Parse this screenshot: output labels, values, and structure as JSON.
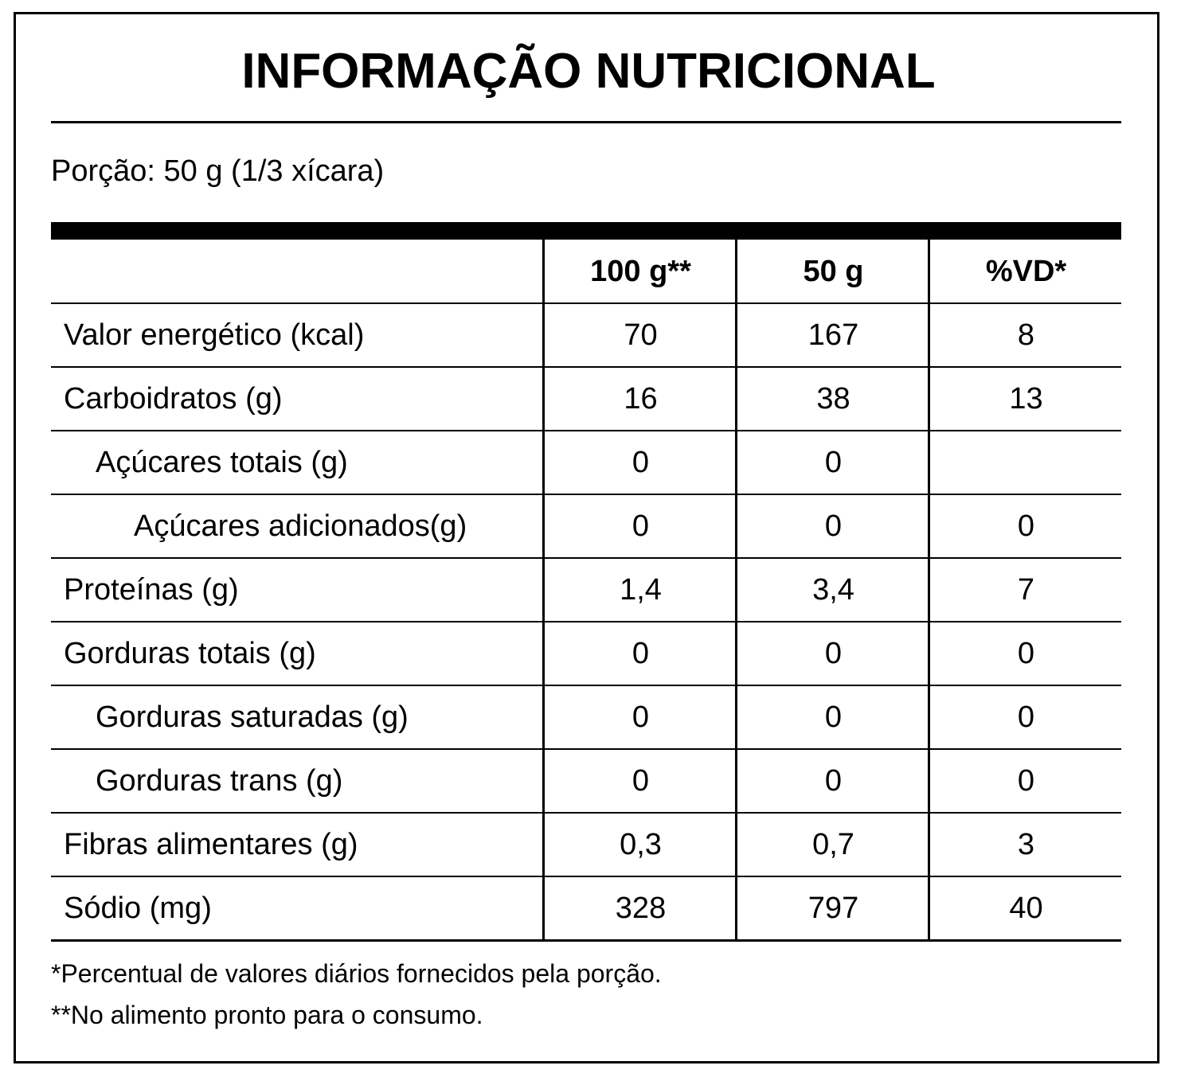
{
  "title": "INFORMAÇÃO NUTRICIONAL",
  "serving": "Porção: 50 g (1/3 xícara)",
  "table": {
    "header": [
      "100 g**",
      "50 g",
      "%VD*"
    ],
    "rows": [
      [
        "Valor energético (kcal)",
        "70",
        "167",
        "8"
      ],
      [
        "Carboidratos (g)",
        "16",
        "38",
        "13"
      ],
      [
        "Açúcares totais (g)",
        "0",
        "0",
        null
      ],
      [
        "Açúcares adicionados(g)",
        "0",
        "0",
        "0"
      ],
      [
        "Proteínas (g)",
        "1,4",
        "3,4",
        "7"
      ],
      [
        "Gorduras totais (g)",
        "0",
        "0",
        "0"
      ],
      [
        "Gorduras saturadas (g)",
        "0",
        "0",
        "0"
      ],
      [
        "Gorduras trans (g)",
        "0",
        "0",
        "0"
      ],
      [
        "Fibras alimentares (g)",
        "0,3",
        "0,7",
        "3"
      ],
      [
        "Sódio (mg)",
        "328",
        "797",
        "40"
      ]
    ]
  },
  "footnotes": [
    "*Percentual de valores diários fornecidos pela porção.",
    "**No alimento pronto para o consumo."
  ]
}
